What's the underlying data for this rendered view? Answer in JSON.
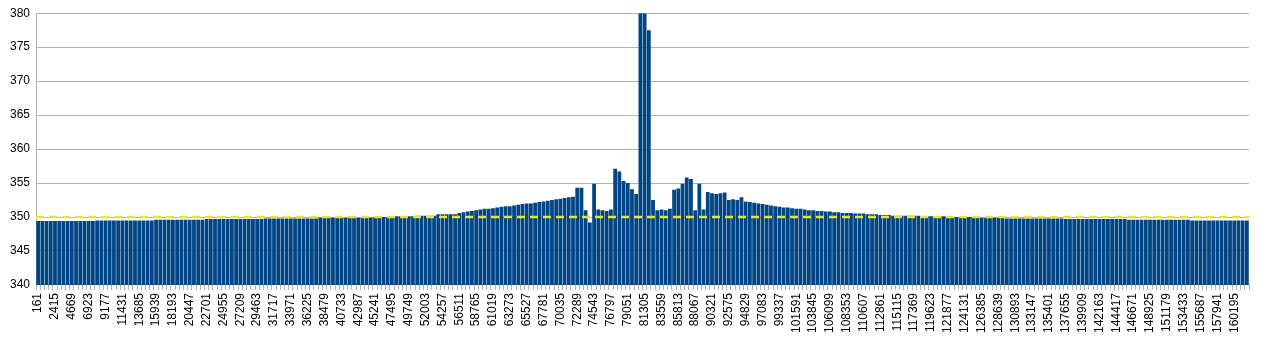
{
  "chart_data": {
    "type": "bar",
    "color": "#004586",
    "ylim": [
      340,
      380
    ],
    "yticks": [
      340,
      345,
      350,
      355,
      360,
      365,
      370,
      375,
      380
    ],
    "grid": "y",
    "legend": false,
    "categories": [
      "161",
      null,
      null,
      null,
      "2415",
      null,
      null,
      null,
      "4669",
      null,
      null,
      null,
      "6923",
      null,
      null,
      null,
      "9177",
      null,
      null,
      null,
      "11431",
      null,
      null,
      null,
      "13685",
      null,
      null,
      null,
      "15939",
      null,
      null,
      null,
      "18193",
      null,
      null,
      null,
      "20447",
      null,
      null,
      null,
      "22701",
      null,
      null,
      null,
      "24955",
      null,
      null,
      null,
      "27209",
      null,
      null,
      null,
      "29463",
      null,
      null,
      null,
      "31717",
      null,
      null,
      null,
      "33971",
      null,
      null,
      null,
      "36225",
      null,
      null,
      null,
      "38479",
      null,
      null,
      null,
      "40733",
      null,
      null,
      null,
      "42987",
      null,
      null,
      null,
      "45241",
      null,
      null,
      null,
      "47495",
      null,
      null,
      null,
      "49749",
      null,
      null,
      null,
      "52003",
      null,
      null,
      null,
      "54257",
      null,
      null,
      null,
      "56511",
      null,
      null,
      null,
      "58765",
      null,
      null,
      null,
      "61019",
      null,
      null,
      null,
      "63273",
      null,
      null,
      null,
      "65527",
      null,
      null,
      null,
      "67781",
      null,
      null,
      null,
      "70035",
      null,
      null,
      null,
      "72289",
      null,
      null,
      null,
      "74543",
      null,
      null,
      null,
      "76797",
      null,
      null,
      null,
      "79051",
      null,
      null,
      null,
      "81305",
      null,
      null,
      null,
      "83559",
      null,
      null,
      null,
      "85813",
      null,
      null,
      null,
      "88067",
      null,
      null,
      null,
      "90321",
      null,
      null,
      null,
      "92575",
      null,
      null,
      null,
      "94829",
      null,
      null,
      null,
      "97083",
      null,
      null,
      null,
      "99337",
      null,
      null,
      null,
      "101591",
      null,
      null,
      null,
      "103845",
      null,
      null,
      null,
      "106099",
      null,
      null,
      null,
      "108353",
      null,
      null,
      null,
      "110607",
      null,
      null,
      null,
      "112861",
      null,
      null,
      null,
      "115115",
      null,
      null,
      null,
      "117369",
      null,
      null,
      null,
      "119623",
      null,
      null,
      null,
      "121877",
      null,
      null,
      null,
      "124131",
      null,
      null,
      null,
      "126385",
      null,
      null,
      null,
      "128639",
      null,
      null,
      null,
      "130893",
      null,
      null,
      null,
      "133147",
      null,
      null,
      null,
      "135401",
      null,
      null,
      null,
      "137655",
      null,
      null,
      null,
      "139909",
      null,
      null,
      null,
      "142163",
      null,
      null,
      null,
      "144417",
      null,
      null,
      null,
      "146671",
      null,
      null,
      null,
      "148925",
      null,
      null,
      null,
      "151179",
      null,
      null,
      null,
      "153433",
      null,
      null,
      null,
      "155687",
      null,
      null,
      null,
      "157941",
      null,
      null,
      null,
      "160195",
      null,
      null,
      null
    ],
    "values": [
      349.4,
      349.4,
      349.4,
      349.4,
      349.4,
      349.4,
      349.4,
      349.4,
      349.4,
      349.4,
      349.4,
      349.4,
      349.4,
      349.4,
      349.5,
      349.5,
      349.5,
      349.5,
      349.5,
      349.5,
      349.5,
      349.5,
      349.5,
      349.5,
      349.5,
      349.5,
      349.5,
      349.5,
      349.6,
      349.6,
      349.6,
      349.6,
      349.6,
      349.6,
      349.6,
      349.6,
      349.6,
      349.6,
      349.6,
      349.6,
      349.7,
      349.7,
      349.7,
      349.7,
      349.7,
      349.7,
      349.7,
      349.7,
      349.7,
      349.7,
      349.7,
      349.7,
      349.7,
      349.7,
      349.8,
      349.8,
      349.8,
      349.8,
      349.8,
      349.8,
      349.8,
      349.8,
      349.8,
      349.8,
      349.8,
      349.8,
      349.8,
      349.9,
      349.9,
      349.9,
      349.9,
      349.9,
      349.9,
      349.9,
      349.9,
      349.9,
      349.9,
      349.9,
      349.9,
      349.9,
      350.0,
      350.0,
      350.0,
      350.0,
      350.0,
      350.1,
      350.1,
      350.1,
      350.1,
      350.1,
      350.2,
      350.2,
      350.2,
      350.2,
      350.2,
      350.4,
      350.4,
      350.4,
      350.4,
      350.4,
      350.6,
      350.7,
      350.8,
      350.9,
      351.0,
      351.1,
      351.2,
      351.2,
      351.3,
      351.4,
      351.5,
      351.6,
      351.6,
      351.7,
      351.8,
      351.9,
      352.0,
      352.0,
      352.1,
      352.2,
      352.3,
      352.4,
      352.5,
      352.6,
      352.7,
      352.8,
      352.9,
      353.0,
      354.3,
      354.3,
      351.0,
      349.2,
      354.9,
      351.1,
      351.0,
      350.9,
      351.1,
      357.1,
      356.7,
      355.3,
      355.0,
      354.1,
      353.4,
      380,
      380,
      377.5,
      352.5,
      351.0,
      351.1,
      351.0,
      351.2,
      354.0,
      354.2,
      354.9,
      355.8,
      355.6,
      351.0,
      354.9,
      351.1,
      353.7,
      353.5,
      353.4,
      353.5,
      353.6,
      352.5,
      352.6,
      352.5,
      352.9,
      352.3,
      352.2,
      352.1,
      352.0,
      351.9,
      351.8,
      351.7,
      351.6,
      351.5,
      351.4,
      351.4,
      351.3,
      351.2,
      351.2,
      351.1,
      351.0,
      351.0,
      350.9,
      350.9,
      350.8,
      350.8,
      350.7,
      350.7,
      350.6,
      350.6,
      350.6,
      350.5,
      350.5,
      350.5,
      350.4,
      350.4,
      350.4,
      350.3,
      350.3,
      350.3,
      350.2,
      350.2,
      350.2,
      350.2,
      350.2,
      350.2,
      350.2,
      350.1,
      350.1,
      350.1,
      350.1,
      350.1,
      350.1,
      350.1,
      350.0,
      350.0,
      350.0,
      350.0,
      350.0,
      350.0,
      350.0,
      349.9,
      349.9,
      349.9,
      349.9,
      349.9,
      349.9,
      349.8,
      349.8,
      349.8,
      349.8,
      349.8,
      349.8,
      349.8,
      349.8,
      349.8,
      349.8,
      349.8,
      349.8,
      349.8,
      349.8,
      349.7,
      349.7,
      349.7,
      349.7,
      349.7,
      349.7,
      349.7,
      349.7,
      349.7,
      349.7,
      349.7,
      349.7,
      349.7,
      349.7,
      349.7,
      349.6,
      349.6,
      349.6,
      349.6,
      349.6,
      349.6,
      349.6,
      349.6,
      349.6,
      349.6,
      349.6,
      349.6,
      349.6,
      349.6,
      349.6,
      349.5,
      349.5,
      349.5,
      349.5,
      349.5,
      349.5,
      349.5,
      349.5,
      349.5,
      349.5,
      349.5,
      349.5,
      349.5,
      349.5
    ],
    "ref_lines": [
      {
        "axis": "y",
        "value": 350,
        "color": "#e6e62e",
        "line_style": "dashed"
      }
    ]
  }
}
